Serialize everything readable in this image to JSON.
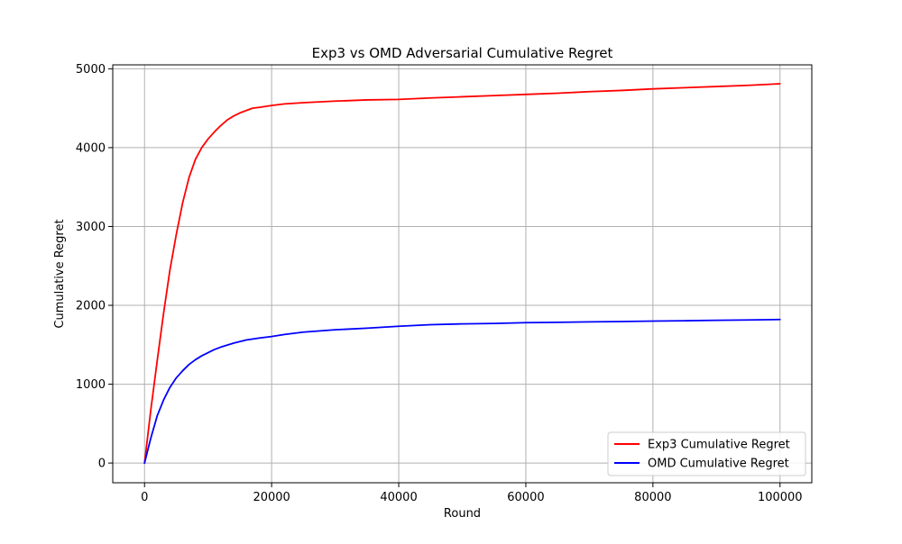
{
  "chart_data": {
    "type": "line",
    "title": "Exp3 vs OMD Adversarial Cumulative Regret",
    "xlabel": "Round",
    "ylabel": "Cumulative Regret",
    "xlim": [
      -5000,
      105000
    ],
    "ylim": [
      -250,
      5050
    ],
    "xticks": [
      0,
      20000,
      40000,
      60000,
      80000,
      100000
    ],
    "yticks": [
      0,
      1000,
      2000,
      3000,
      4000,
      5000
    ],
    "grid": true,
    "legend_position": "bottom-right",
    "series": [
      {
        "name": "Exp3 Cumulative Regret",
        "color": "#ff0000",
        "x": [
          0,
          1000,
          2000,
          3000,
          4000,
          5000,
          6000,
          7000,
          8000,
          9000,
          10000,
          11000,
          12000,
          13000,
          14000,
          15000,
          16000,
          17000,
          18000,
          20000,
          22000,
          25000,
          30000,
          35000,
          40000,
          45000,
          50000,
          55000,
          60000,
          65000,
          70000,
          75000,
          80000,
          85000,
          90000,
          95000,
          100000
        ],
        "y": [
          0,
          680,
          1300,
          1900,
          2450,
          2900,
          3300,
          3620,
          3850,
          4000,
          4110,
          4200,
          4280,
          4350,
          4400,
          4440,
          4470,
          4500,
          4510,
          4535,
          4555,
          4570,
          4590,
          4605,
          4612,
          4630,
          4645,
          4660,
          4675,
          4690,
          4710,
          4725,
          4745,
          4760,
          4775,
          4790,
          4810
        ]
      },
      {
        "name": "OMD Cumulative Regret",
        "color": "#0000ff",
        "x": [
          0,
          1000,
          2000,
          3000,
          4000,
          5000,
          6000,
          7000,
          8000,
          9000,
          10000,
          11000,
          12000,
          14000,
          16000,
          18000,
          20000,
          22000,
          25000,
          30000,
          35000,
          40000,
          45000,
          50000,
          55000,
          60000,
          65000,
          70000,
          75000,
          80000,
          85000,
          90000,
          95000,
          100000
        ],
        "y": [
          0,
          320,
          600,
          800,
          960,
          1080,
          1170,
          1250,
          1310,
          1360,
          1400,
          1440,
          1470,
          1520,
          1560,
          1585,
          1605,
          1630,
          1660,
          1690,
          1710,
          1735,
          1755,
          1765,
          1770,
          1780,
          1785,
          1790,
          1795,
          1800,
          1805,
          1810,
          1815,
          1820
        ]
      }
    ]
  }
}
